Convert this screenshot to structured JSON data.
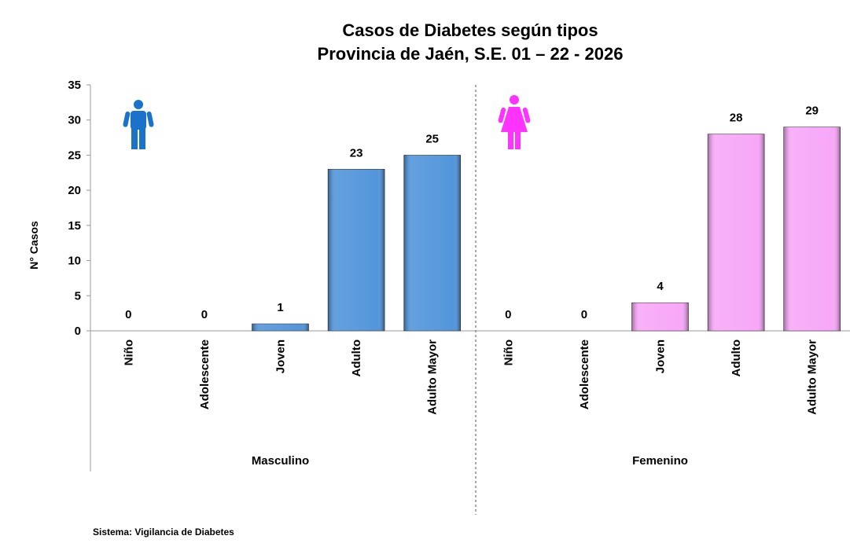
{
  "chart_data": {
    "type": "bar",
    "title": [
      "Casos de Diabetes según tipos",
      "Provincia de Jaén, S.E. 01 – 22 - 2026"
    ],
    "ylabel": "N° Casos",
    "groups": [
      {
        "name": "Masculino",
        "color": "#4a90d9",
        "categories": [
          "Niño",
          "Adolescente",
          "Joven",
          "Adulto",
          "Adulto Mayor"
        ],
        "values": [
          0,
          0,
          1,
          23,
          25
        ]
      },
      {
        "name": "Femenino",
        "color": "#f7a3f7",
        "categories": [
          "Niño",
          "Adolescente",
          "Joven",
          "Adulto",
          "Adulto Mayor"
        ],
        "values": [
          0,
          0,
          4,
          28,
          29
        ]
      }
    ],
    "ylim": [
      0,
      35
    ],
    "yticks": [
      0,
      5,
      10,
      15,
      20,
      25,
      30,
      35
    ],
    "grid": false,
    "footer": "Sistema: Vigilancia de Diabetes"
  }
}
